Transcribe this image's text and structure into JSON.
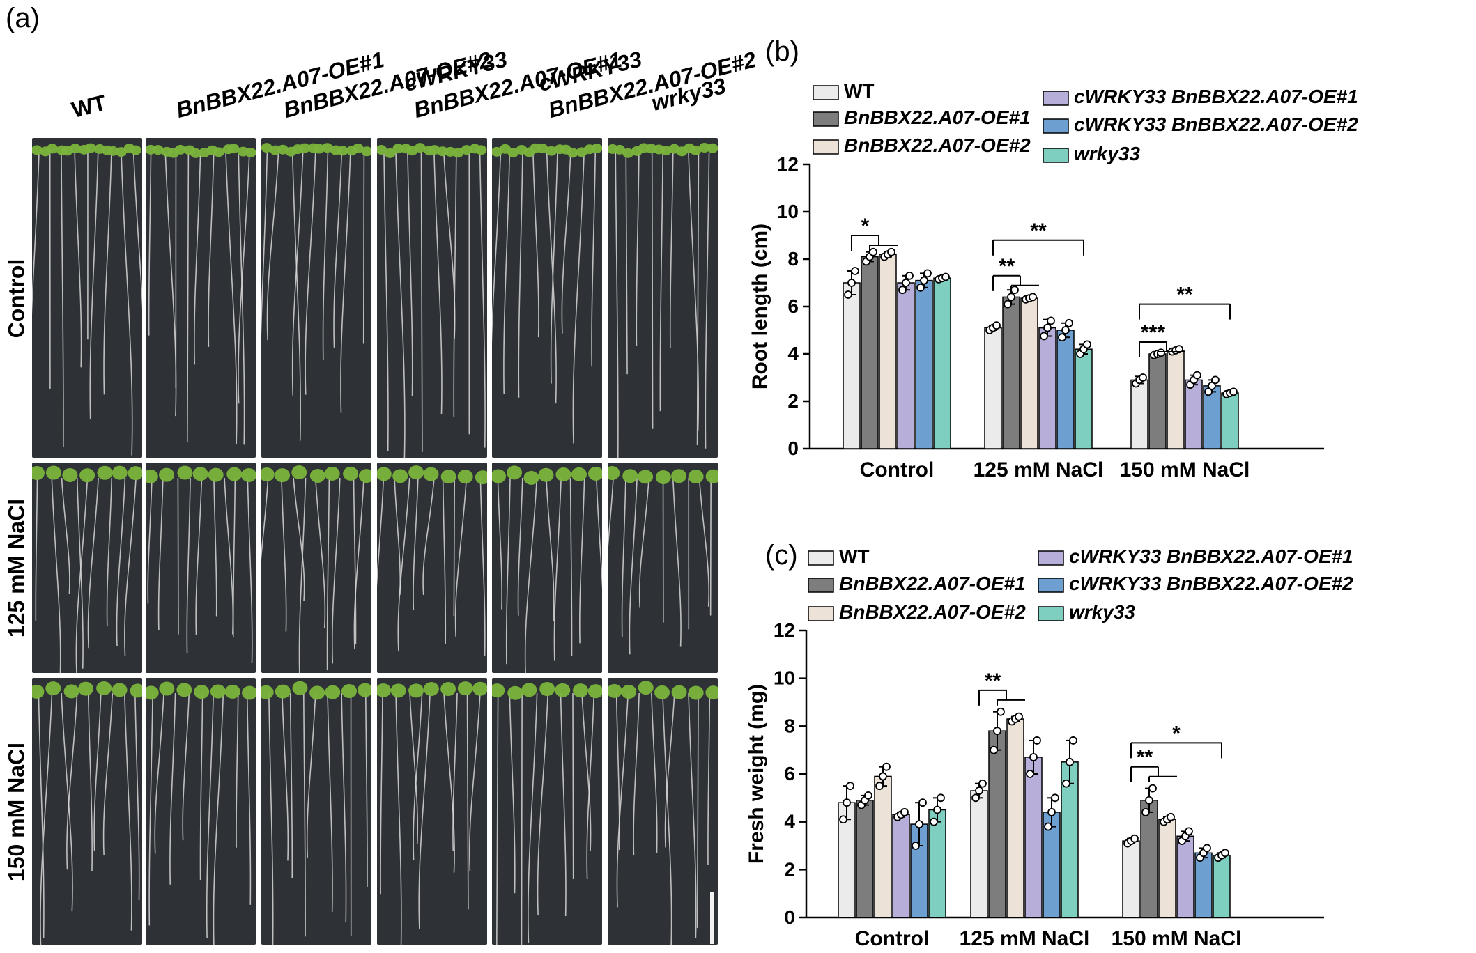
{
  "panel_a": {
    "label": "(a)",
    "columns": [
      "WT",
      "BnBBX22.A07-OE#1",
      "BnBBX22.A07-OE#2",
      "cWRKY33 BnBBX22.A07-OE#1",
      "cWRKY33 BnBBX22.A07-OE#2",
      "wrky33"
    ],
    "column_lines": [
      [
        "WT"
      ],
      [
        "BnBBX22.A07-OE#1"
      ],
      [
        "BnBBX22.A07-OE#2"
      ],
      [
        "cWRKY33",
        "BnBBX22.A07-OE#1"
      ],
      [
        "cWRKY33",
        "BnBBX22.A07-OE#2"
      ],
      [
        "wrky33"
      ]
    ],
    "rows": [
      "Control",
      "125 mM NaCl",
      "150 mM NaCl"
    ],
    "plate_color": "#2e3136",
    "leaf_color": "#7ab43c",
    "root_color": "#d8d8d8"
  },
  "legend_colors": [
    "#ebebeb",
    "#7d7d7d",
    "#ede2d8",
    "#b7aed9",
    "#6d9fd0",
    "#7ecfc0"
  ],
  "chart_data": [
    {
      "panel_label": "(b)",
      "type": "bar",
      "categories": [
        "Control",
        "125 mM NaCl",
        "150 mM NaCl"
      ],
      "ylabel": "Root length (cm)",
      "ylim": [
        0,
        12
      ],
      "yticks": [
        0,
        2,
        4,
        6,
        8,
        10,
        12
      ],
      "series": [
        {
          "name": "WT",
          "values": [
            7.0,
            5.1,
            2.9
          ],
          "errors": [
            0.5,
            0.1,
            0.15
          ],
          "points": [
            [
              6.5,
              7.0,
              7.5
            ],
            [
              5.0,
              5.1,
              5.2
            ],
            [
              2.75,
              2.9,
              3.0
            ]
          ]
        },
        {
          "name": "BnBBX22.A07-OE#1",
          "values": [
            8.1,
            6.4,
            4.0
          ],
          "errors": [
            0.2,
            0.3,
            0.05
          ],
          "points": [
            [
              7.9,
              8.1,
              8.3
            ],
            [
              6.1,
              6.4,
              6.7
            ],
            [
              3.95,
              4.0,
              4.05
            ]
          ]
        },
        {
          "name": "BnBBX22.A07-OE#2",
          "values": [
            8.2,
            6.35,
            4.15
          ],
          "errors": [
            0.1,
            0.05,
            0.05
          ],
          "points": [
            [
              8.1,
              8.2,
              8.3
            ],
            [
              6.3,
              6.35,
              6.4
            ],
            [
              4.1,
              4.15,
              4.2
            ]
          ]
        },
        {
          "name": "cWRKY33 BnBBX22.A07-OE#1",
          "values": [
            7.0,
            5.1,
            2.9
          ],
          "errors": [
            0.3,
            0.35,
            0.2
          ],
          "points": [
            [
              6.7,
              7.0,
              7.3
            ],
            [
              4.75,
              5.1,
              5.4
            ],
            [
              2.7,
              2.9,
              3.1
            ]
          ]
        },
        {
          "name": "cWRKY33 BnBBX22.A07-OE#2",
          "values": [
            7.1,
            5.0,
            2.65
          ],
          "errors": [
            0.3,
            0.3,
            0.25
          ],
          "points": [
            [
              6.8,
              7.1,
              7.4
            ],
            [
              4.7,
              5.0,
              5.3
            ],
            [
              2.4,
              2.65,
              2.9
            ]
          ]
        },
        {
          "name": "wrky33",
          "values": [
            7.2,
            4.2,
            2.35
          ],
          "errors": [
            0.05,
            0.2,
            0.05
          ],
          "points": [
            [
              7.15,
              7.2,
              7.25
            ],
            [
              4.0,
              4.2,
              4.4
            ],
            [
              2.3,
              2.35,
              2.4
            ]
          ]
        }
      ],
      "annotations": [
        {
          "text": "*",
          "group": 0,
          "from": 0,
          "to": [
            1,
            2
          ],
          "level": 9.0
        },
        {
          "text": "**",
          "group": 1,
          "from": 0,
          "to": [
            1,
            2
          ],
          "level": 7.3
        },
        {
          "text": "**",
          "group": 1,
          "from": 0,
          "to": [
            5
          ],
          "level": 8.8
        },
        {
          "text": "***",
          "group": 2,
          "from": 0,
          "to": [
            1,
            2
          ],
          "level": 4.5
        },
        {
          "text": "**",
          "group": 2,
          "from": 0,
          "to": [
            5
          ],
          "level": 6.1
        }
      ]
    },
    {
      "panel_label": "(c)",
      "type": "bar",
      "categories": [
        "Control",
        "125 mM NaCl",
        "150 mM NaCl"
      ],
      "ylabel": "Fresh weight (mg)",
      "ylim": [
        0,
        12
      ],
      "yticks": [
        0,
        2,
        4,
        6,
        8,
        10,
        12
      ],
      "series": [
        {
          "name": "WT",
          "values": [
            4.8,
            5.3,
            3.2
          ],
          "errors": [
            0.7,
            0.3,
            0.1
          ],
          "points": [
            [
              4.1,
              4.8,
              5.5
            ],
            [
              5.0,
              5.3,
              5.6
            ],
            [
              3.1,
              3.2,
              3.3
            ]
          ]
        },
        {
          "name": "BnBBX22.A07-OE#1",
          "values": [
            4.9,
            7.8,
            4.9
          ],
          "errors": [
            0.2,
            0.8,
            0.5
          ],
          "points": [
            [
              4.7,
              4.9,
              5.1
            ],
            [
              7.0,
              7.8,
              8.6
            ],
            [
              4.4,
              4.9,
              5.4
            ]
          ]
        },
        {
          "name": "BnBBX22.A07-OE#2",
          "values": [
            5.9,
            8.3,
            4.1
          ],
          "errors": [
            0.4,
            0.1,
            0.1
          ],
          "points": [
            [
              5.5,
              5.9,
              6.3
            ],
            [
              8.2,
              8.3,
              8.4
            ],
            [
              4.0,
              4.1,
              4.2
            ]
          ]
        },
        {
          "name": "cWRKY33 BnBBX22.A07-OE#1",
          "values": [
            4.3,
            6.7,
            3.4
          ],
          "errors": [
            0.1,
            0.7,
            0.2
          ],
          "points": [
            [
              4.2,
              4.3,
              4.4
            ],
            [
              6.0,
              6.7,
              7.4
            ],
            [
              3.2,
              3.4,
              3.6
            ]
          ]
        },
        {
          "name": "cWRKY33 BnBBX22.A07-OE#2",
          "values": [
            3.9,
            4.4,
            2.7
          ],
          "errors": [
            0.9,
            0.6,
            0.2
          ],
          "points": [
            [
              3.0,
              3.9,
              4.8
            ],
            [
              3.8,
              4.4,
              5.0
            ],
            [
              2.5,
              2.7,
              2.9
            ]
          ]
        },
        {
          "name": "wrky33",
          "values": [
            4.5,
            6.5,
            2.6
          ],
          "errors": [
            0.5,
            0.9,
            0.1
          ],
          "points": [
            [
              4.0,
              4.5,
              5.0
            ],
            [
              5.6,
              6.5,
              7.4
            ],
            [
              2.5,
              2.6,
              2.7
            ]
          ]
        }
      ],
      "annotations": [
        {
          "text": "**",
          "group": 1,
          "from": 0,
          "to": [
            1,
            2
          ],
          "level": 9.5
        },
        {
          "text": "**",
          "group": 2,
          "from": 0,
          "to": [
            1,
            2
          ],
          "level": 6.3
        },
        {
          "text": "*",
          "group": 2,
          "from": 0,
          "to": [
            5
          ],
          "level": 7.3
        }
      ]
    }
  ]
}
